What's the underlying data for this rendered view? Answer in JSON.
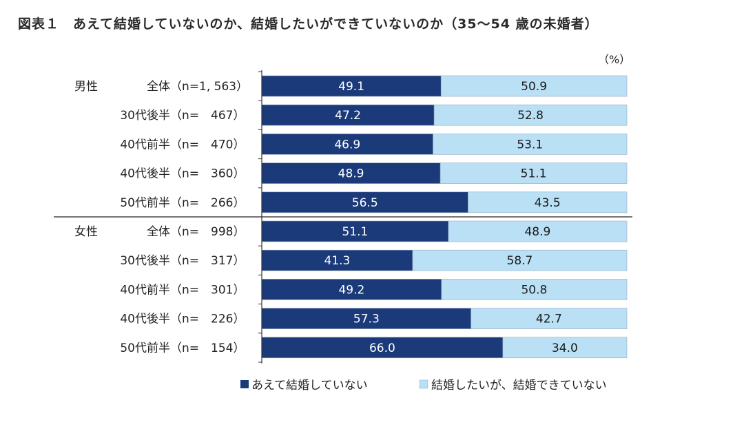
{
  "chart_data": {
    "type": "bar",
    "stacked": true,
    "orientation": "horizontal",
    "percent_scale": true,
    "title": "図表１　あえて結婚していないのか、結婚したいができていないのか（35～54 歳の未婚者）",
    "unit": "（%）",
    "xlim": [
      0,
      100
    ],
    "groups": [
      {
        "name": "男性",
        "rows": [
          {
            "label": "全体",
            "n": "（n=1, 563）",
            "values": [
              49.1,
              50.9
            ]
          },
          {
            "label": "30代後半",
            "n": "（n=　467）",
            "values": [
              47.2,
              52.8
            ]
          },
          {
            "label": "40代前半",
            "n": "（n=　470）",
            "values": [
              46.9,
              53.1
            ]
          },
          {
            "label": "40代後半",
            "n": "（n=　360）",
            "values": [
              48.9,
              51.1
            ]
          },
          {
            "label": "50代前半",
            "n": "（n=　266）",
            "values": [
              56.5,
              43.5
            ]
          }
        ]
      },
      {
        "name": "女性",
        "rows": [
          {
            "label": "全体",
            "n": "（n=　998）",
            "values": [
              51.1,
              48.9
            ]
          },
          {
            "label": "30代後半",
            "n": "（n=　317）",
            "values": [
              41.3,
              58.7
            ]
          },
          {
            "label": "40代前半",
            "n": "（n=　301）",
            "values": [
              49.2,
              50.8
            ]
          },
          {
            "label": "40代後半",
            "n": "（n=　226）",
            "values": [
              57.3,
              42.7
            ]
          },
          {
            "label": "50代前半",
            "n": "（n=　154）",
            "values": [
              66.0,
              34.0
            ]
          }
        ]
      }
    ],
    "series": [
      {
        "name": "あえて結婚していない",
        "color": "#1b3a7a"
      },
      {
        "name": "結婚したいが、結婚できていない",
        "color": "#b9e0f5"
      }
    ],
    "legend_position": "bottom"
  }
}
